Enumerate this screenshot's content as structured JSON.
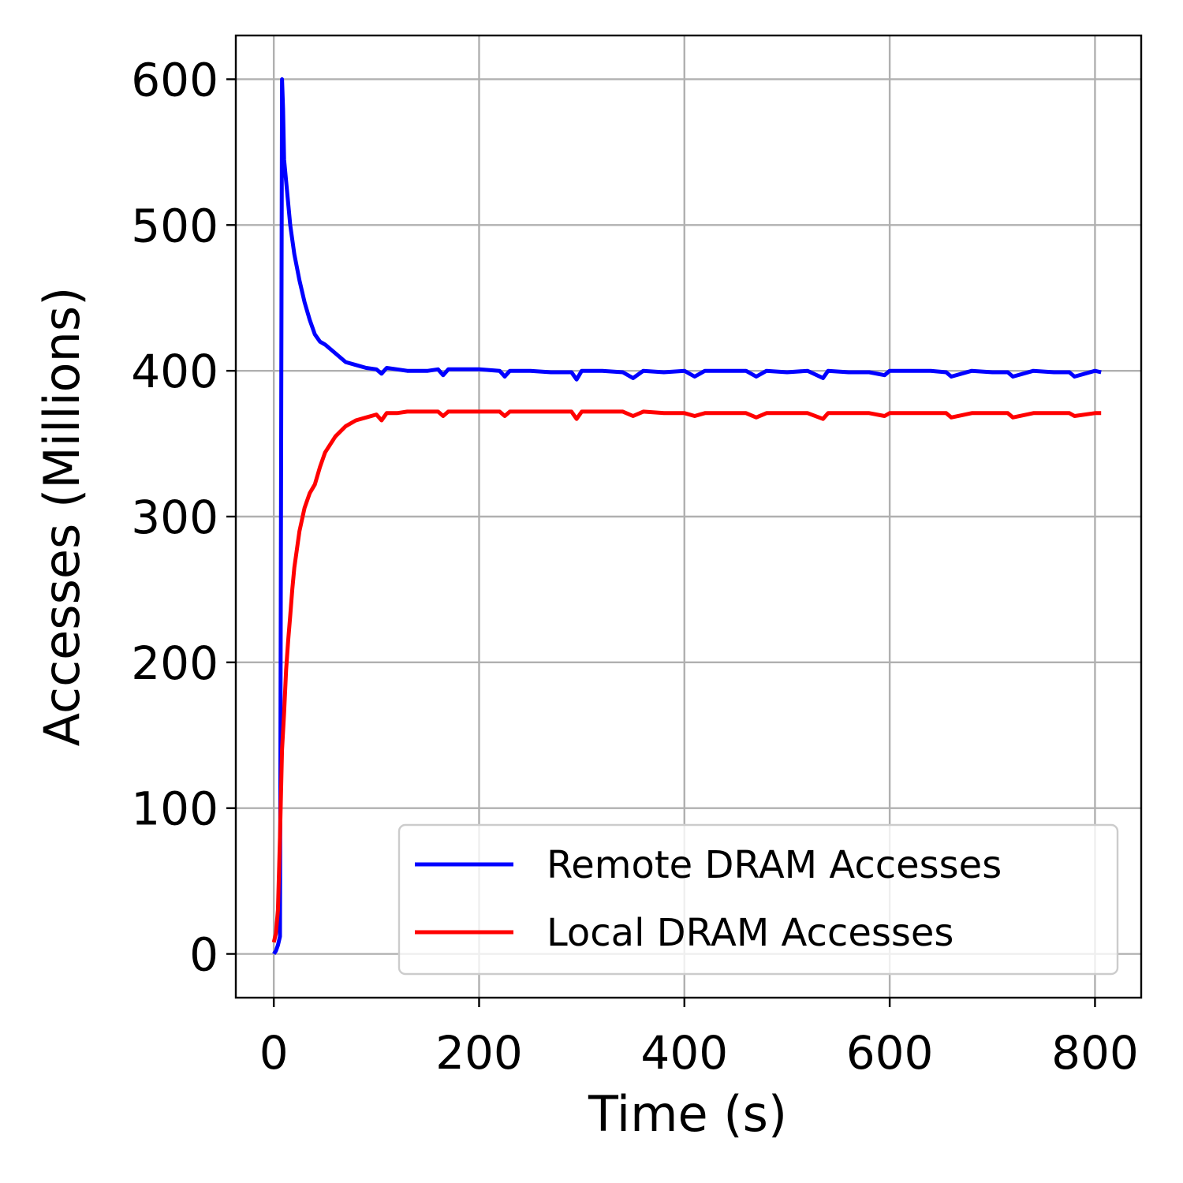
{
  "chart_data": {
    "type": "line",
    "xlabel": "Time (s)",
    "ylabel": "Accesses (Millions)",
    "xlim": [
      -37,
      845
    ],
    "ylim": [
      -30,
      630
    ],
    "xticks": [
      0,
      200,
      400,
      600,
      800
    ],
    "yticks": [
      0,
      100,
      200,
      300,
      400,
      500,
      600
    ],
    "grid": true,
    "legend_position": "lower-right",
    "series": [
      {
        "name": "Remote DRAM Accesses",
        "color": "#0000ff",
        "x": [
          0,
          2,
          4,
          6,
          8,
          9,
          10,
          12,
          14,
          16,
          18,
          20,
          25,
          30,
          35,
          40,
          45,
          50,
          60,
          70,
          80,
          90,
          100,
          105,
          110,
          120,
          130,
          140,
          150,
          160,
          165,
          170,
          180,
          200,
          220,
          225,
          230,
          250,
          270,
          290,
          295,
          300,
          320,
          340,
          350,
          360,
          380,
          400,
          410,
          420,
          440,
          460,
          470,
          480,
          500,
          520,
          535,
          540,
          560,
          580,
          595,
          600,
          620,
          640,
          655,
          660,
          680,
          700,
          715,
          720,
          740,
          760,
          775,
          780,
          800,
          806
        ],
        "y": [
          0,
          2,
          6,
          12,
          600,
          580,
          545,
          530,
          515,
          500,
          490,
          480,
          462,
          447,
          435,
          425,
          420,
          418,
          412,
          406,
          404,
          402,
          401,
          398,
          402,
          401,
          400,
          400,
          400,
          401,
          397,
          401,
          401,
          401,
          400,
          396,
          400,
          400,
          399,
          399,
          394,
          400,
          400,
          399,
          395,
          400,
          399,
          400,
          396,
          400,
          400,
          400,
          396,
          400,
          399,
          400,
          395,
          400,
          399,
          399,
          397,
          400,
          400,
          400,
          399,
          396,
          400,
          399,
          399,
          396,
          400,
          399,
          399,
          396,
          400,
          399
        ]
      },
      {
        "name": "Local DRAM Accesses",
        "color": "#ff0000",
        "x": [
          0,
          2,
          4,
          6,
          8,
          10,
          12,
          14,
          16,
          18,
          20,
          25,
          30,
          35,
          40,
          45,
          50,
          60,
          70,
          80,
          90,
          100,
          105,
          110,
          120,
          130,
          140,
          150,
          160,
          165,
          170,
          180,
          200,
          220,
          225,
          230,
          250,
          270,
          290,
          295,
          300,
          320,
          340,
          350,
          360,
          380,
          400,
          410,
          420,
          440,
          460,
          470,
          480,
          500,
          520,
          535,
          540,
          560,
          580,
          595,
          600,
          620,
          640,
          655,
          660,
          680,
          700,
          715,
          720,
          740,
          760,
          775,
          780,
          800,
          806
        ],
        "y": [
          8,
          14,
          30,
          80,
          140,
          165,
          195,
          215,
          232,
          250,
          265,
          290,
          306,
          316,
          322,
          334,
          344,
          355,
          362,
          366,
          368,
          370,
          366,
          371,
          371,
          372,
          372,
          372,
          372,
          369,
          372,
          372,
          372,
          372,
          369,
          372,
          372,
          372,
          372,
          367,
          372,
          372,
          372,
          369,
          372,
          371,
          371,
          369,
          371,
          371,
          371,
          368,
          371,
          371,
          371,
          367,
          371,
          371,
          371,
          369,
          371,
          371,
          371,
          371,
          368,
          371,
          371,
          371,
          368,
          371,
          371,
          371,
          369,
          371,
          371
        ]
      }
    ]
  }
}
